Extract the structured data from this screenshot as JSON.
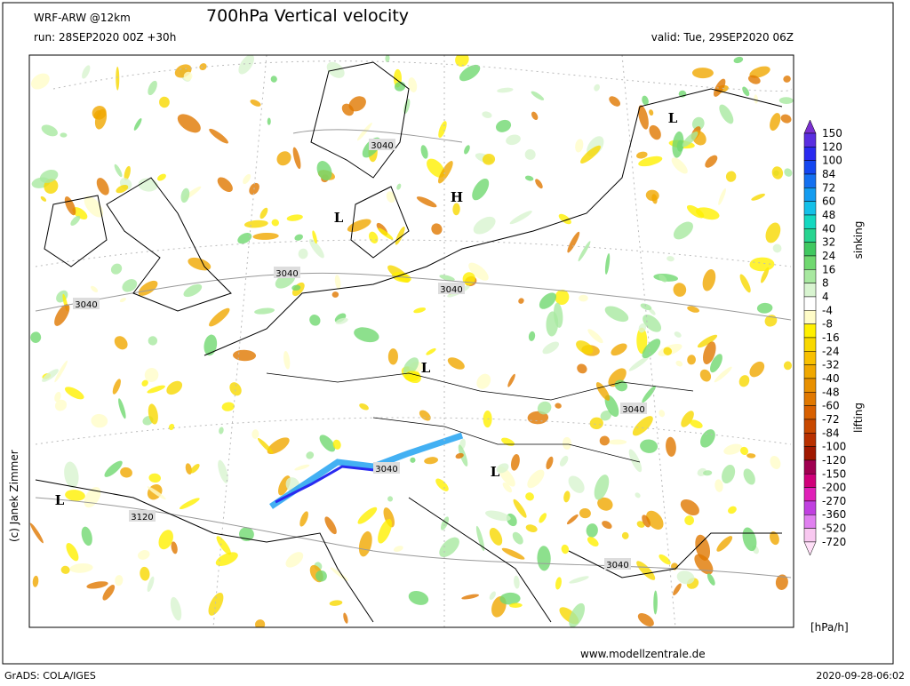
{
  "header": {
    "model": "WRF-ARW @12km",
    "title": "700hPa Vertical velocity",
    "run": "run: 28SEP2020 00Z +30h",
    "valid": "valid: Tue, 29SEP2020 06Z"
  },
  "map": {
    "pressure_labels": [
      "L",
      "H",
      "L",
      "L",
      "L",
      "L"
    ],
    "contour_labels": [
      "3040",
      "3040",
      "3040",
      "3040",
      "3040",
      "3040",
      "3040",
      "3120"
    ]
  },
  "colorbar": {
    "labels": [
      "150",
      "120",
      "100",
      "84",
      "72",
      "60",
      "48",
      "40",
      "32",
      "24",
      "16",
      "8",
      "4",
      "-4",
      "-8",
      "-16",
      "-24",
      "-32",
      "-40",
      "-48",
      "-60",
      "-72",
      "-84",
      "-100",
      "-120",
      "-150",
      "-200",
      "-270",
      "-360",
      "-520",
      "-720"
    ],
    "colors": [
      "#7a2fd0",
      "#5a2ee0",
      "#2a2af0",
      "#1446f0",
      "#1470f0",
      "#149cf0",
      "#14c0e8",
      "#14d8c0",
      "#28d490",
      "#40c860",
      "#70d870",
      "#a8e8a0",
      "#d8f4d0",
      "#ffffff",
      "#fffcc8",
      "#fff000",
      "#f8d800",
      "#f8c000",
      "#f0a800",
      "#e89000",
      "#e07800",
      "#d86000",
      "#c84800",
      "#b83000",
      "#a01800",
      "#a00050",
      "#d0007a",
      "#e020b8",
      "#c040e0",
      "#e080f0",
      "#f8c8f0",
      "#ffe0f8"
    ],
    "sinking": "sinking",
    "lifting": "lifting",
    "unit": "[hPa/h]"
  },
  "footer": {
    "credit": "(c) Janek Zimmer",
    "website": "www.modellzentrale.de",
    "software": "GrADS: COLA/IGES",
    "timestamp": "2020-09-28-06:02"
  }
}
